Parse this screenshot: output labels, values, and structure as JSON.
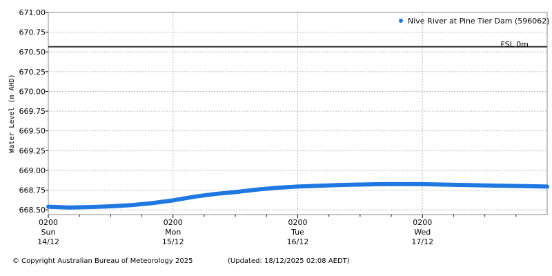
{
  "chart_data": {
    "type": "line",
    "ylabel": "Water Level (m AHD)",
    "ylim": [
      668.44,
      671.0
    ],
    "yticks": [
      668.5,
      668.75,
      669.0,
      669.25,
      669.5,
      669.75,
      670.0,
      670.25,
      670.5,
      670.75,
      671.0
    ],
    "ytick_labels": [
      "668.50",
      "668.75",
      "669.00",
      "669.25",
      "669.50",
      "669.75",
      "670.00",
      "670.25",
      "670.50",
      "670.75",
      "671.00"
    ],
    "xlim": [
      0,
      96
    ],
    "x_unit": "hours after 0200 Sun 14/12",
    "xticks": [
      {
        "x": 0,
        "time": "0200",
        "day": "Sun",
        "date": "14/12"
      },
      {
        "x": 24,
        "time": "0200",
        "day": "Mon",
        "date": "15/12"
      },
      {
        "x": 48,
        "time": "0200",
        "day": "Tue",
        "date": "16/12"
      },
      {
        "x": 72,
        "time": "0200",
        "day": "Wed",
        "date": "17/12"
      }
    ],
    "grid": true,
    "legend_position": "top-right",
    "series": [
      {
        "name": "Nive River at Pine Tier Dam (596062)",
        "color": "#1f77e0",
        "x": [
          0,
          4,
          8,
          12,
          16,
          20,
          24,
          28,
          32,
          36,
          40,
          44,
          48,
          52,
          56,
          60,
          64,
          68,
          72,
          76,
          80,
          84,
          88,
          92,
          96
        ],
        "y": [
          668.54,
          668.53,
          668.535,
          668.545,
          668.56,
          668.585,
          668.62,
          668.665,
          668.7,
          668.725,
          668.755,
          668.78,
          668.795,
          668.805,
          668.815,
          668.82,
          668.825,
          668.825,
          668.825,
          668.82,
          668.815,
          668.81,
          668.805,
          668.8,
          668.795
        ]
      }
    ],
    "reference_lines": [
      {
        "label": "FSL 0m",
        "y": 670.565,
        "color": "#333333"
      }
    ]
  },
  "footer": {
    "copyright": "© Copyright Australian Bureau of Meteorology 2025",
    "updated": "(Updated: 18/12/2025 02:08 AEDT)"
  }
}
